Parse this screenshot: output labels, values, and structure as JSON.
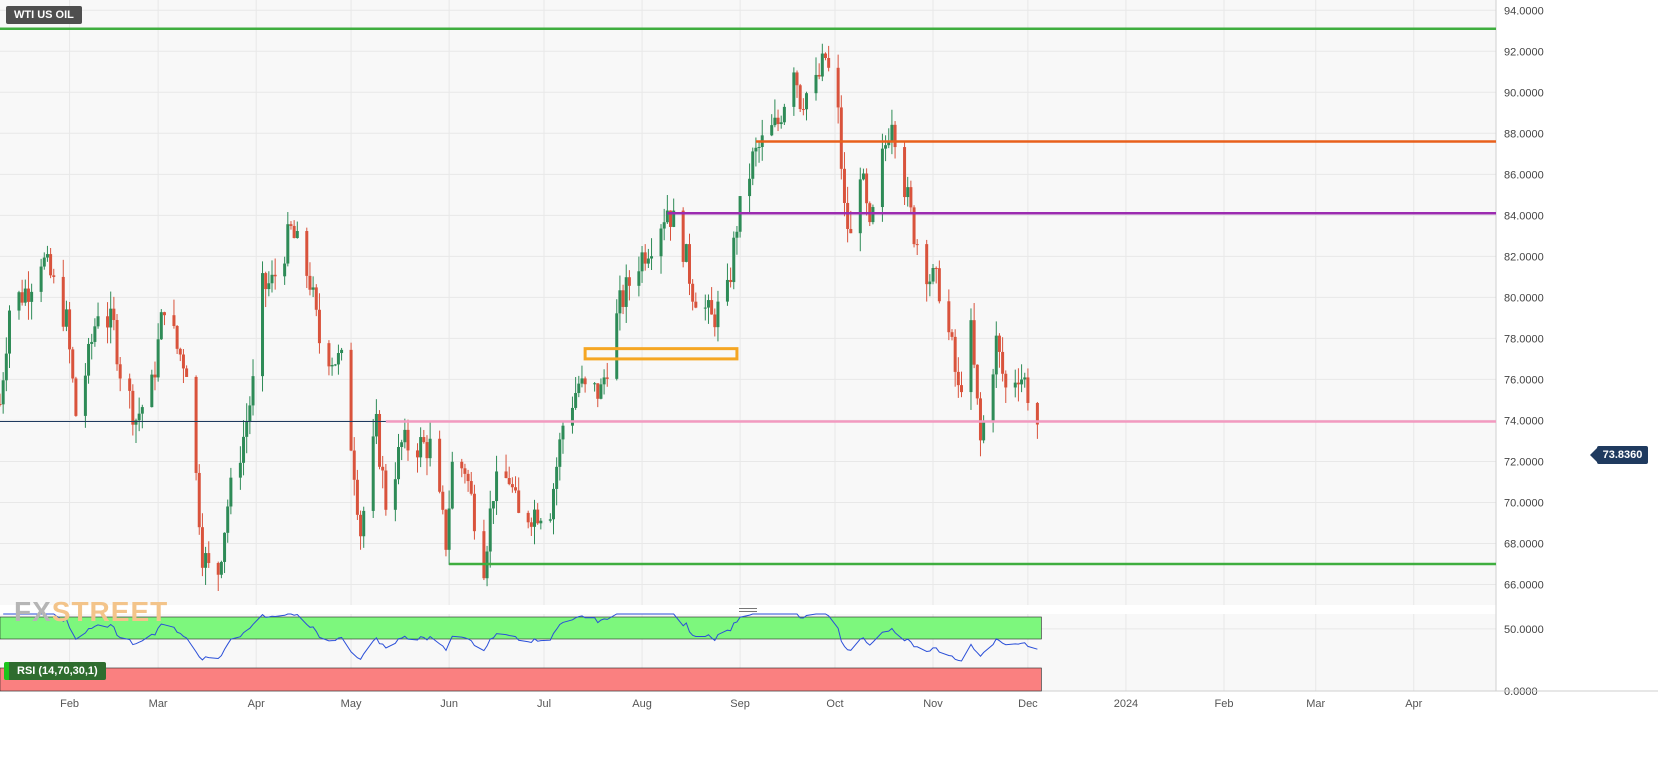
{
  "symbol": "WTI US OIL",
  "watermark": {
    "fx": "FX",
    "street": "STREET"
  },
  "last_price": "73.8360",
  "rsi_label": "RSI (14,70,30,1)",
  "colors": {
    "up": "#2e8b57",
    "down": "#d9533c",
    "grid": "#e8e8e8",
    "plot_bg": "#f8f8f8",
    "green_line": "#3fae3f",
    "orange_line": "#e8601c",
    "purple_line": "#9b2bb0",
    "pink_line": "#f29ac0",
    "navy_line": "#1f3a5f",
    "orange_box": "#f5a623",
    "rsi_line": "#2a4fd8",
    "rsi_overbought": "#7df77d",
    "rsi_oversold": "#fa8080"
  },
  "chart_data": {
    "type": "candlestick",
    "title": "WTI US OIL",
    "y_axis": {
      "ylim": [
        65,
        94.5
      ],
      "ticks": [
        "66.0000",
        "68.0000",
        "70.0000",
        "72.0000",
        "74.0000",
        "76.0000",
        "78.0000",
        "80.0000",
        "82.0000",
        "84.0000",
        "86.0000",
        "88.0000",
        "90.0000",
        "92.0000",
        "94.0000"
      ],
      "tick_values": [
        66,
        68,
        70,
        72,
        74,
        76,
        78,
        80,
        82,
        84,
        86,
        88,
        90,
        92,
        94
      ]
    },
    "x_axis": {
      "range": [
        "2023-01-10",
        "2024-04-27"
      ],
      "ticks": [
        {
          "label": "Feb",
          "date": "2023-02-01"
        },
        {
          "label": "Mar",
          "date": "2023-03-01"
        },
        {
          "label": "Apr",
          "date": "2023-04-01"
        },
        {
          "label": "May",
          "date": "2023-05-01"
        },
        {
          "label": "Jun",
          "date": "2023-06-01"
        },
        {
          "label": "Jul",
          "date": "2023-07-01"
        },
        {
          "label": "Aug",
          "date": "2023-08-01"
        },
        {
          "label": "Sep",
          "date": "2023-09-01"
        },
        {
          "label": "Oct",
          "date": "2023-10-01"
        },
        {
          "label": "Nov",
          "date": "2023-11-01"
        },
        {
          "label": "Dec",
          "date": "2023-12-01"
        },
        {
          "label": "2024",
          "date": "2024-01-01"
        },
        {
          "label": "Feb",
          "date": "2024-02-01"
        },
        {
          "label": "Mar",
          "date": "2024-03-01"
        },
        {
          "label": "Apr",
          "date": "2024-04-01"
        }
      ]
    },
    "price_anchors": [
      [
        "2023-01-10",
        74.8
      ],
      [
        "2023-01-13",
        79.5
      ],
      [
        "2023-01-19",
        80.5
      ],
      [
        "2023-01-23",
        82.0
      ],
      [
        "2023-01-26",
        81.0
      ],
      [
        "2023-01-31",
        78.8
      ],
      [
        "2023-02-03",
        74.3
      ],
      [
        "2023-02-07",
        77.0
      ],
      [
        "2023-02-10",
        79.5
      ],
      [
        "2023-02-15",
        78.5
      ],
      [
        "2023-02-17",
        76.5
      ],
      [
        "2023-02-22",
        74.1
      ],
      [
        "2023-02-27",
        75.6
      ],
      [
        "2023-03-03",
        79.8
      ],
      [
        "2023-03-07",
        77.5
      ],
      [
        "2023-03-10",
        76.7
      ],
      [
        "2023-03-15",
        67.6
      ],
      [
        "2023-03-17",
        66.7
      ],
      [
        "2023-03-20",
        66.7
      ],
      [
        "2023-03-23",
        69.9
      ],
      [
        "2023-03-28",
        73.2
      ],
      [
        "2023-03-31",
        75.7
      ],
      [
        "2023-04-03",
        80.4
      ],
      [
        "2023-04-06",
        80.7
      ],
      [
        "2023-04-12",
        83.2
      ],
      [
        "2023-04-14",
        82.5
      ],
      [
        "2023-04-18",
        80.8
      ],
      [
        "2023-04-21",
        77.9
      ],
      [
        "2023-04-25",
        77.1
      ],
      [
        "2023-04-28",
        76.8
      ],
      [
        "2023-05-02",
        71.7
      ],
      [
        "2023-05-04",
        68.6
      ],
      [
        "2023-05-09",
        73.6
      ],
      [
        "2023-05-12",
        70.0
      ],
      [
        "2023-05-17",
        72.8
      ],
      [
        "2023-05-23",
        72.8
      ],
      [
        "2023-05-26",
        72.7
      ],
      [
        "2023-05-31",
        68.1
      ],
      [
        "2023-06-02",
        71.8
      ],
      [
        "2023-06-06",
        71.7
      ],
      [
        "2023-06-12",
        67.1
      ],
      [
        "2023-06-15",
        70.6
      ],
      [
        "2023-06-20",
        71.2
      ],
      [
        "2023-06-23",
        69.2
      ],
      [
        "2023-06-28",
        69.6
      ],
      [
        "2023-07-03",
        69.8
      ],
      [
        "2023-07-07",
        73.8
      ],
      [
        "2023-07-12",
        75.8
      ],
      [
        "2023-07-14",
        75.4
      ],
      [
        "2023-07-19",
        75.4
      ],
      [
        "2023-07-25",
        79.6
      ],
      [
        "2023-07-31",
        81.8
      ],
      [
        "2023-08-04",
        82.8
      ],
      [
        "2023-08-09",
        84.4
      ],
      [
        "2023-08-14",
        82.5
      ],
      [
        "2023-08-17",
        80.4
      ],
      [
        "2023-08-23",
        78.9
      ],
      [
        "2023-08-28",
        80.1
      ],
      [
        "2023-08-31",
        83.6
      ],
      [
        "2023-09-05",
        86.7
      ],
      [
        "2023-09-08",
        87.5
      ],
      [
        "2023-09-13",
        88.5
      ],
      [
        "2023-09-18",
        91.5
      ],
      [
        "2023-09-20",
        89.7
      ],
      [
        "2023-09-25",
        90.3
      ],
      [
        "2023-09-28",
        91.7
      ],
      [
        "2023-10-02",
        88.8
      ],
      [
        "2023-10-04",
        84.2
      ],
      [
        "2023-10-06",
        82.8
      ],
      [
        "2023-10-09",
        86.4
      ],
      [
        "2023-10-12",
        83.0
      ],
      [
        "2023-10-16",
        86.7
      ],
      [
        "2023-10-19",
        89.0
      ],
      [
        "2023-10-23",
        85.5
      ],
      [
        "2023-10-26",
        83.2
      ],
      [
        "2023-10-31",
        81.0
      ],
      [
        "2023-11-03",
        80.5
      ],
      [
        "2023-11-07",
        77.4
      ],
      [
        "2023-11-09",
        75.3
      ],
      [
        "2023-11-13",
        78.2
      ],
      [
        "2023-11-16",
        72.9
      ],
      [
        "2023-11-21",
        77.8
      ],
      [
        "2023-11-24",
        75.5
      ],
      [
        "2023-11-28",
        76.4
      ],
      [
        "2023-11-30",
        75.9
      ],
      [
        "2023-12-04",
        73.8
      ]
    ],
    "rsi": {
      "ylim": [
        0,
        62
      ],
      "ticks": [
        "0.0000",
        "50.0000"
      ],
      "tick_values": [
        0,
        50
      ],
      "overbought": 70,
      "oversold": 30,
      "period": 14
    },
    "horizontal_lines": [
      {
        "name": "resistance-green",
        "price": 93.1,
        "from": "2023-01-10",
        "to": "2024-04-27",
        "color": "#3fae3f"
      },
      {
        "name": "resistance-orange",
        "price": 87.6,
        "from": "2023-09-06",
        "to": "2024-04-27",
        "color": "#e8601c"
      },
      {
        "name": "resistance-purple",
        "price": 84.1,
        "from": "2023-08-09",
        "to": "2024-04-27",
        "color": "#9b2bb0"
      },
      {
        "name": "support-pink",
        "price": 73.95,
        "from": "2023-05-12",
        "to": "2024-04-27",
        "color": "#f29ac0"
      },
      {
        "name": "price-navy",
        "price": 73.95,
        "from": "2023-01-10",
        "to": "2023-05-12",
        "color": "#1f3a5f"
      },
      {
        "name": "support-green",
        "price": 67.0,
        "from": "2023-06-01",
        "to": "2024-04-27",
        "color": "#3fae3f"
      }
    ],
    "zones": [
      {
        "name": "orange-zone",
        "from": "2023-07-14",
        "to": "2023-08-31",
        "low": 77.0,
        "high": 77.5,
        "color": "#f5a623"
      }
    ]
  }
}
